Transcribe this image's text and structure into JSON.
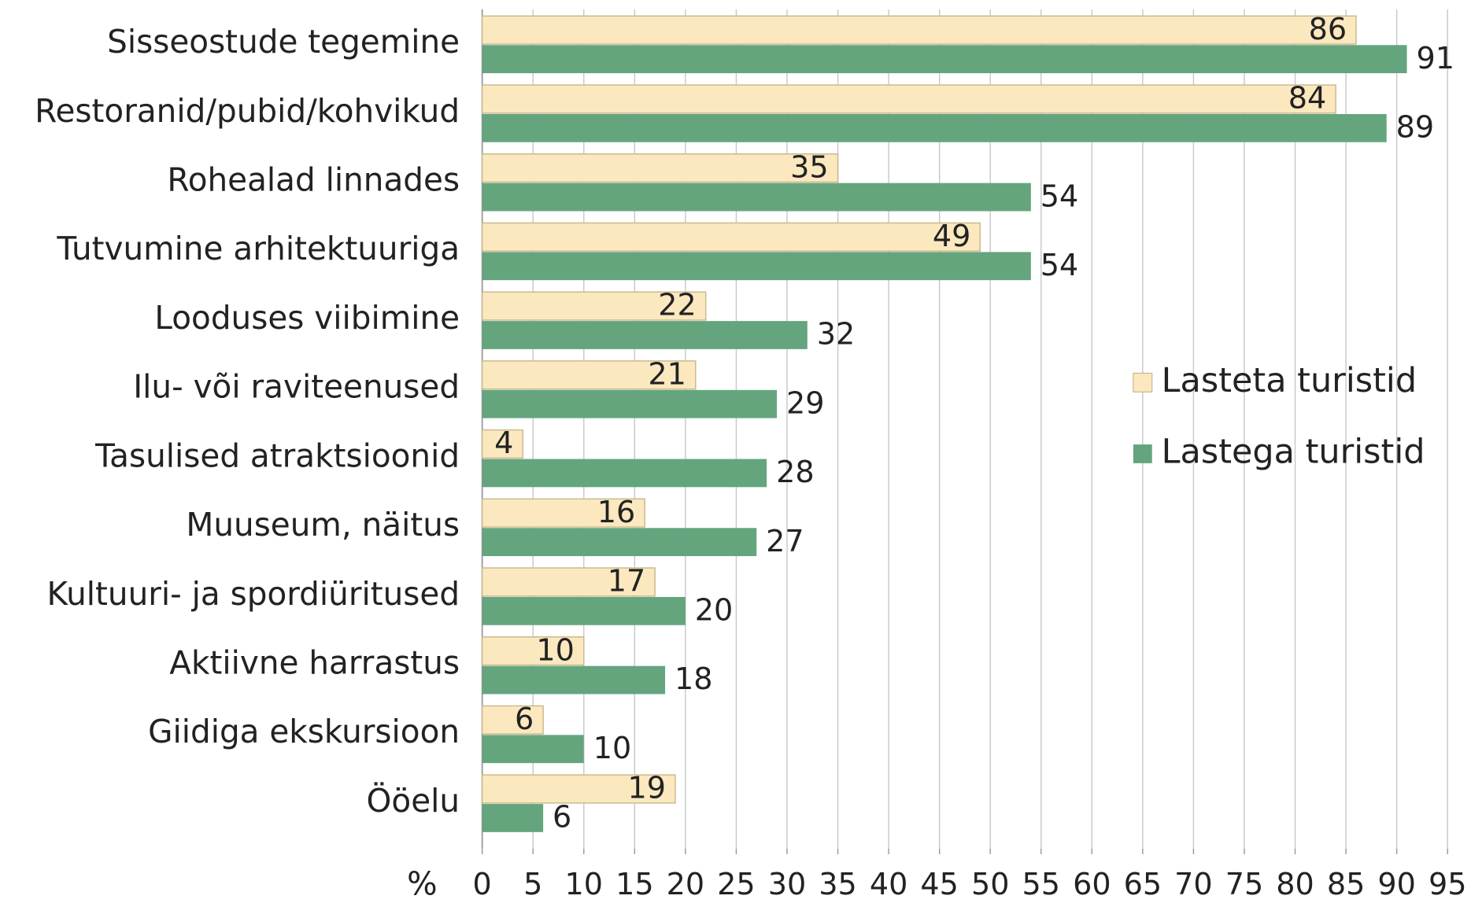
{
  "chart_data": {
    "type": "hbar",
    "categories": [
      "Sisseostude tegemine",
      "Restoranid/pubid/kohvikud",
      "Rohealad linnades",
      "Tutvumine arhitektuuriga",
      "Looduses viibimine",
      "Ilu- või raviteenused",
      "Tasulised atraktsioonid",
      "Muuseum, näitus",
      "Kultuuri- ja spordiüritused",
      "Aktiivne harrastus",
      "Giidiga ekskursioon",
      "Ööelu"
    ],
    "series": [
      {
        "name": "Lasteta turistid",
        "color": "#fbe8bf",
        "values": [
          86,
          84,
          35,
          49,
          22,
          21,
          4,
          16,
          17,
          10,
          6,
          19
        ]
      },
      {
        "name": "Lastega turistid",
        "color": "#64a57e",
        "values": [
          91,
          89,
          54,
          54,
          32,
          29,
          28,
          27,
          20,
          18,
          10,
          6
        ]
      }
    ],
    "x_label": "%",
    "xlim": [
      0,
      95
    ],
    "xticks": [
      0,
      5,
      10,
      15,
      20,
      25,
      30,
      35,
      40,
      45,
      50,
      55,
      60,
      65,
      70,
      75,
      80,
      85,
      90,
      95
    ],
    "grid": true
  }
}
